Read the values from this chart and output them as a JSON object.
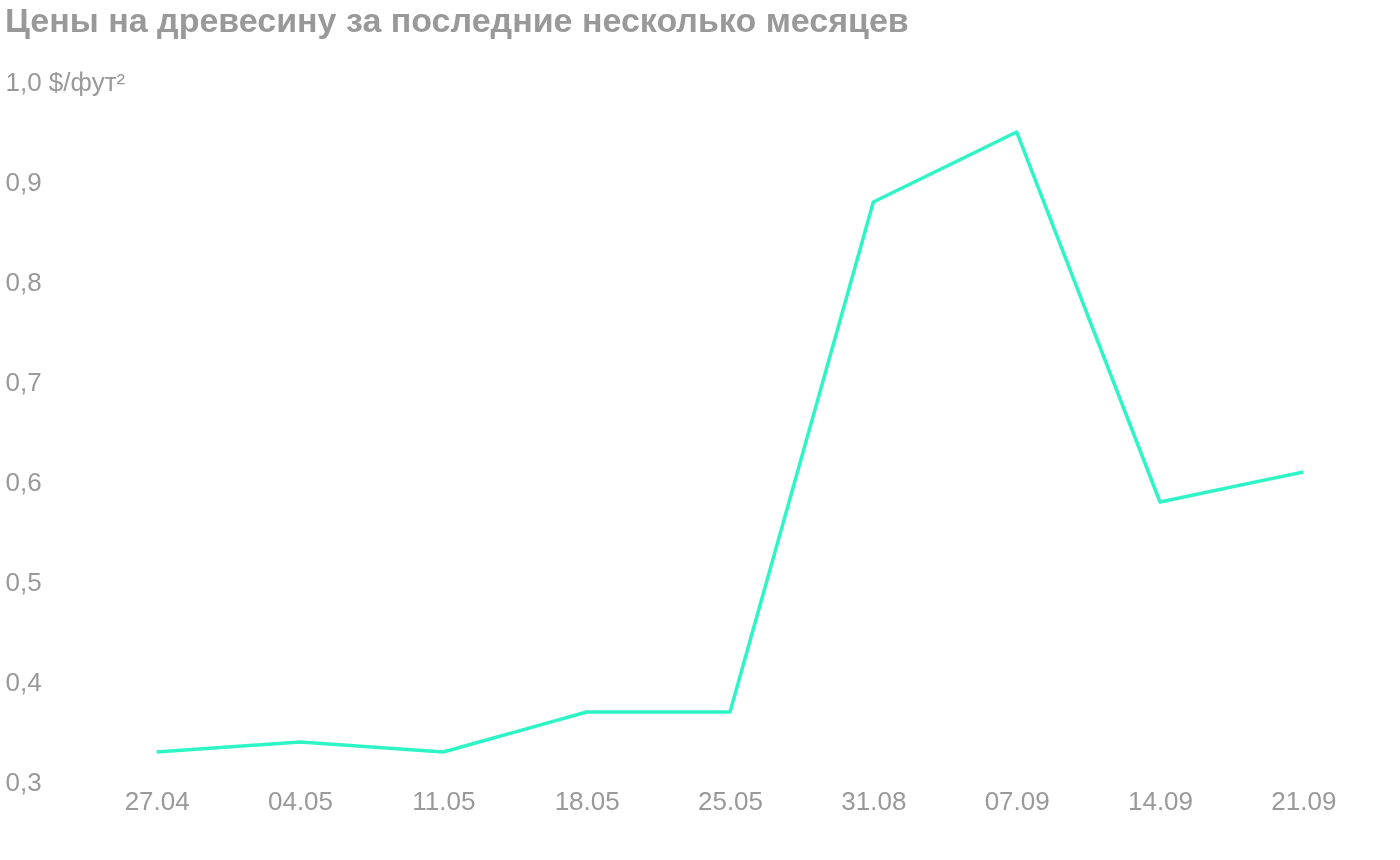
{
  "chart_data": {
    "type": "line",
    "title": "Цены на древесину за последние несколько месяцев",
    "categories": [
      "27.04",
      "04.05",
      "11.05",
      "18.05",
      "25.05",
      "31.08",
      "07.09",
      "14.09",
      "21.09"
    ],
    "series": [
      {
        "color": "#2ef5c5",
        "values": [
          0.33,
          0.34,
          0.33,
          0.37,
          0.37,
          0.88,
          0.95,
          0.58,
          0.61
        ]
      }
    ],
    "ylim": [
      0.3,
      1.0
    ],
    "yticks": [
      {
        "value": 0.3,
        "label": "0,3"
      },
      {
        "value": 0.4,
        "label": "0,4"
      },
      {
        "value": 0.5,
        "label": "0,5"
      },
      {
        "value": 0.6,
        "label": "0,6"
      },
      {
        "value": 0.7,
        "label": "0,7"
      },
      {
        "value": 0.8,
        "label": "0,8"
      },
      {
        "value": 0.9,
        "label": "0,9"
      },
      {
        "value": 1.0,
        "label": "1,0 $/фут²"
      }
    ],
    "grid": false,
    "marker": "none",
    "line_style": "solid"
  }
}
